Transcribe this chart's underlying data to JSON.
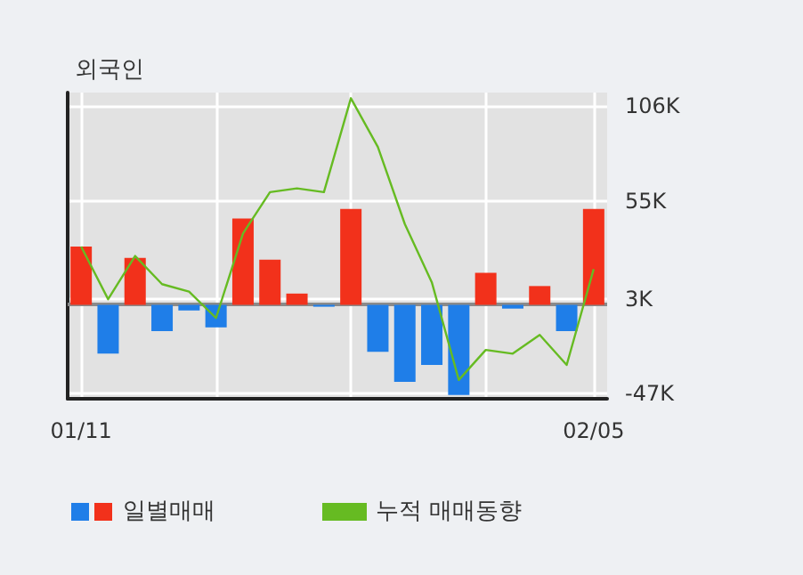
{
  "chart_data": {
    "type": "bar",
    "title": "외국인",
    "categories": [
      "01/11",
      null,
      null,
      null,
      null,
      null,
      null,
      null,
      null,
      null,
      null,
      null,
      null,
      null,
      null,
      null,
      null,
      null,
      null,
      "02/05"
    ],
    "series": [
      {
        "name": "일별매매",
        "colors": [
          "#f2311b",
          "#1f7ee8",
          "#f2311b",
          "#1f7ee8",
          "#1f7ee8",
          "#1f7ee8",
          "#f2311b",
          "#f2311b",
          "#f2311b",
          "#1f7ee8",
          "#f2311b",
          "#1f7ee8",
          "#1f7ee8",
          "#1f7ee8",
          "#1f7ee8",
          "#f2311b",
          "#1f7ee8",
          "#f2311b",
          "#1f7ee8",
          "#f2311b"
        ],
        "values": [
          31,
          -26,
          25,
          -14,
          -3,
          -12,
          46,
          24,
          6,
          -1,
          51,
          -25,
          -41,
          -32,
          -48,
          17,
          -2,
          10,
          -14,
          51
        ]
      },
      {
        "name": "누적 매매동향",
        "type": "line",
        "color": "#66bb22",
        "values": [
          31,
          3,
          26,
          11,
          7,
          -7,
          38,
          60,
          62,
          60,
          110,
          84,
          43,
          12,
          -40,
          -24,
          -26,
          -16,
          -32,
          19
        ]
      }
    ],
    "ylim": [
      -50,
      113
    ],
    "yticks": [
      {
        "value": -47,
        "label": "-47K"
      },
      {
        "value": 3,
        "label": "3K"
      },
      {
        "value": 55,
        "label": "55K"
      },
      {
        "value": 106,
        "label": "106K"
      }
    ],
    "ref_lines": [
      {
        "axis": "y",
        "value": 0,
        "color": "#8a8a8a"
      }
    ],
    "grid": true,
    "legend": "bottom left",
    "marker": "none"
  }
}
